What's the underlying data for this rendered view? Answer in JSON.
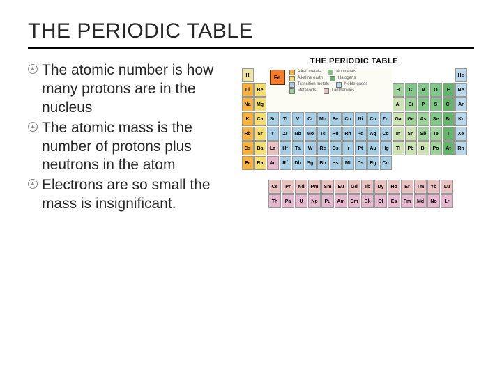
{
  "title": "THE PERIODIC TABLE",
  "bullets": [
    "The atomic number is how many protons are in the nucleus",
    "The atomic mass is the number of protons plus neutrons in the atom",
    "Electrons are so small the mass is insignificant."
  ],
  "periodic_table": {
    "heading": "THE PERIODIC TABLE",
    "colors": {
      "alkali": "#f9b23c",
      "alkaline": "#f6df6f",
      "transition": "#a6cfe6",
      "posttransition": "#cfe2b4",
      "metalloid": "#9ed29a",
      "nonmetal": "#7fc688",
      "halogen": "#66b36c",
      "noble": "#b9d8ec",
      "lanth": "#eac2c2",
      "actin": "#e6b8d0",
      "hydrogen": "#efe6a6"
    },
    "rows": [
      [
        [
          "H",
          "hydrogen"
        ],
        null,
        null,
        null,
        null,
        null,
        null,
        null,
        null,
        null,
        null,
        null,
        null,
        null,
        null,
        null,
        null,
        [
          "He",
          "noble"
        ]
      ],
      [
        [
          "Li",
          "alkali"
        ],
        [
          "Be",
          "alkaline"
        ],
        null,
        null,
        null,
        null,
        null,
        null,
        null,
        null,
        null,
        null,
        [
          "B",
          "metalloid"
        ],
        [
          "C",
          "nonmetal"
        ],
        [
          "N",
          "nonmetal"
        ],
        [
          "O",
          "nonmetal"
        ],
        [
          "F",
          "halogen"
        ],
        [
          "Ne",
          "noble"
        ]
      ],
      [
        [
          "Na",
          "alkali"
        ],
        [
          "Mg",
          "alkaline"
        ],
        null,
        null,
        null,
        null,
        null,
        null,
        null,
        null,
        null,
        null,
        [
          "Al",
          "posttransition"
        ],
        [
          "Si",
          "metalloid"
        ],
        [
          "P",
          "nonmetal"
        ],
        [
          "S",
          "nonmetal"
        ],
        [
          "Cl",
          "halogen"
        ],
        [
          "Ar",
          "noble"
        ]
      ],
      [
        [
          "K",
          "alkali"
        ],
        [
          "Ca",
          "alkaline"
        ],
        [
          "Sc",
          "transition"
        ],
        [
          "Ti",
          "transition"
        ],
        [
          "V",
          "transition"
        ],
        [
          "Cr",
          "transition"
        ],
        [
          "Mn",
          "transition"
        ],
        [
          "Fe",
          "transition"
        ],
        [
          "Co",
          "transition"
        ],
        [
          "Ni",
          "transition"
        ],
        [
          "Cu",
          "transition"
        ],
        [
          "Zn",
          "transition"
        ],
        [
          "Ga",
          "posttransition"
        ],
        [
          "Ge",
          "metalloid"
        ],
        [
          "As",
          "metalloid"
        ],
        [
          "Se",
          "nonmetal"
        ],
        [
          "Br",
          "halogen"
        ],
        [
          "Kr",
          "noble"
        ]
      ],
      [
        [
          "Rb",
          "alkali"
        ],
        [
          "Sr",
          "alkaline"
        ],
        [
          "Y",
          "transition"
        ],
        [
          "Zr",
          "transition"
        ],
        [
          "Nb",
          "transition"
        ],
        [
          "Mo",
          "transition"
        ],
        [
          "Tc",
          "transition"
        ],
        [
          "Ru",
          "transition"
        ],
        [
          "Rh",
          "transition"
        ],
        [
          "Pd",
          "transition"
        ],
        [
          "Ag",
          "transition"
        ],
        [
          "Cd",
          "transition"
        ],
        [
          "In",
          "posttransition"
        ],
        [
          "Sn",
          "posttransition"
        ],
        [
          "Sb",
          "metalloid"
        ],
        [
          "Te",
          "metalloid"
        ],
        [
          "I",
          "halogen"
        ],
        [
          "Xe",
          "noble"
        ]
      ],
      [
        [
          "Cs",
          "alkali"
        ],
        [
          "Ba",
          "alkaline"
        ],
        [
          "La",
          "lanth"
        ],
        [
          "Hf",
          "transition"
        ],
        [
          "Ta",
          "transition"
        ],
        [
          "W",
          "transition"
        ],
        [
          "Re",
          "transition"
        ],
        [
          "Os",
          "transition"
        ],
        [
          "Ir",
          "transition"
        ],
        [
          "Pt",
          "transition"
        ],
        [
          "Au",
          "transition"
        ],
        [
          "Hg",
          "transition"
        ],
        [
          "Tl",
          "posttransition"
        ],
        [
          "Pb",
          "posttransition"
        ],
        [
          "Bi",
          "posttransition"
        ],
        [
          "Po",
          "metalloid"
        ],
        [
          "At",
          "halogen"
        ],
        [
          "Rn",
          "noble"
        ]
      ],
      [
        [
          "Fr",
          "alkali"
        ],
        [
          "Ra",
          "alkaline"
        ],
        [
          "Ac",
          "actin"
        ],
        [
          "Rf",
          "transition"
        ],
        [
          "Db",
          "transition"
        ],
        [
          "Sg",
          "transition"
        ],
        [
          "Bh",
          "transition"
        ],
        [
          "Hs",
          "transition"
        ],
        [
          "Mt",
          "transition"
        ],
        [
          "Ds",
          "transition"
        ],
        [
          "Rg",
          "transition"
        ],
        [
          "Cn",
          "transition"
        ],
        null,
        null,
        null,
        null,
        null,
        null
      ]
    ],
    "fblock": [
      [
        [
          "Ce",
          "lanth"
        ],
        [
          "Pr",
          "lanth"
        ],
        [
          "Nd",
          "lanth"
        ],
        [
          "Pm",
          "lanth"
        ],
        [
          "Sm",
          "lanth"
        ],
        [
          "Eu",
          "lanth"
        ],
        [
          "Gd",
          "lanth"
        ],
        [
          "Tb",
          "lanth"
        ],
        [
          "Dy",
          "lanth"
        ],
        [
          "Ho",
          "lanth"
        ],
        [
          "Er",
          "lanth"
        ],
        [
          "Tm",
          "lanth"
        ],
        [
          "Yb",
          "lanth"
        ],
        [
          "Lu",
          "lanth"
        ]
      ],
      [
        [
          "Th",
          "actin"
        ],
        [
          "Pa",
          "actin"
        ],
        [
          "U",
          "actin"
        ],
        [
          "Np",
          "actin"
        ],
        [
          "Pu",
          "actin"
        ],
        [
          "Am",
          "actin"
        ],
        [
          "Cm",
          "actin"
        ],
        [
          "Bk",
          "actin"
        ],
        [
          "Cf",
          "actin"
        ],
        [
          "Es",
          "actin"
        ],
        [
          "Fm",
          "actin"
        ],
        [
          "Md",
          "actin"
        ],
        [
          "No",
          "actin"
        ],
        [
          "Lr",
          "actin"
        ]
      ]
    ],
    "legend_sample": "Fe"
  }
}
